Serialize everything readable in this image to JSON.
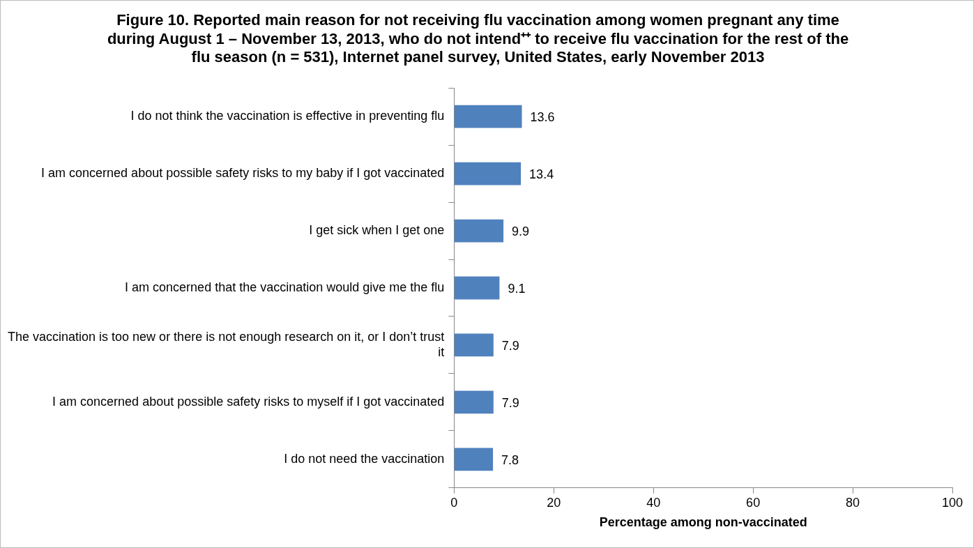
{
  "chart_data": {
    "type": "bar",
    "orientation": "horizontal",
    "title": "Figure 10. Reported main reason for not receiving flu vaccination among women pregnant any time during August 1 – November 13, 2013, who do not intend⁺⁺ to receive flu vaccination for the rest of the flu season (n = 531), Internet panel survey, United States, early November 2013",
    "xlabel": "Percentage among non-vaccinated",
    "categories": [
      "I do not think the vaccination is effective in preventing flu",
      "I am concerned about possible safety risks to my baby if I got vaccinated",
      "I get sick when I get one",
      "I am concerned that the vaccination would give me the flu",
      "The vaccination is too new or there is not enough research on it, or I don’t trust it",
      "I am concerned about possible safety risks to myself if I got vaccinated",
      "I do not need the vaccination"
    ],
    "values": [
      13.6,
      13.4,
      9.9,
      9.1,
      7.9,
      7.9,
      7.8
    ],
    "color": "#4f81bd",
    "xlim": [
      0,
      100
    ],
    "xticks": [
      0,
      20,
      40,
      60,
      80,
      100
    ],
    "data_labels": true,
    "grid": false,
    "legend": false
  }
}
